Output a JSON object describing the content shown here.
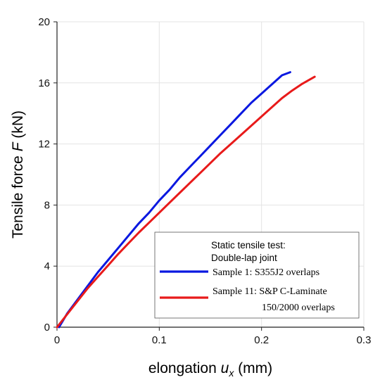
{
  "chart_data": {
    "type": "line",
    "xlabel_prefix": "elongation ",
    "xlabel_var": "u",
    "xlabel_sub": "x",
    "xlabel_suffix": " (mm)",
    "ylabel_prefix": "Tensile force ",
    "ylabel_var": "F",
    "ylabel_suffix": " (kN)",
    "xlim": [
      0,
      0.3
    ],
    "ylim": [
      0,
      20
    ],
    "x_ticks": [
      0,
      0.1,
      0.2,
      0.3
    ],
    "x_tick_labels": [
      "0",
      "0.1",
      "0.2",
      "0.3"
    ],
    "y_ticks": [
      0,
      4,
      8,
      12,
      16,
      20
    ],
    "y_tick_labels": [
      "0",
      "4",
      "8",
      "12",
      "16",
      "20"
    ],
    "grid": true,
    "legend": {
      "placement": "bottom-right",
      "title_lines": [
        "Static tensile test:",
        "Double-lap joint"
      ]
    },
    "series": [
      {
        "name": "Sample 1: S355J2 overlaps",
        "color": "#0a18e0",
        "x": [
          0.002,
          0.01,
          0.02,
          0.03,
          0.04,
          0.05,
          0.06,
          0.07,
          0.08,
          0.09,
          0.1,
          0.11,
          0.12,
          0.13,
          0.14,
          0.15,
          0.16,
          0.17,
          0.18,
          0.19,
          0.2,
          0.21,
          0.22,
          0.228
        ],
        "y": [
          0.0,
          0.9,
          1.8,
          2.7,
          3.6,
          4.4,
          5.2,
          6.0,
          6.8,
          7.5,
          8.3,
          9.0,
          9.8,
          10.5,
          11.2,
          11.9,
          12.6,
          13.3,
          14.0,
          14.7,
          15.3,
          15.9,
          16.5,
          16.7
        ]
      },
      {
        "name_line1": "Sample 11: S&P C-Laminate",
        "name_line2": "150/2000 overlaps",
        "color": "#e81a1a",
        "x": [
          0.0,
          0.01,
          0.02,
          0.03,
          0.04,
          0.05,
          0.06,
          0.07,
          0.08,
          0.09,
          0.1,
          0.11,
          0.12,
          0.13,
          0.14,
          0.15,
          0.16,
          0.17,
          0.18,
          0.19,
          0.2,
          0.21,
          0.22,
          0.23,
          0.24,
          0.252
        ],
        "y": [
          0.0,
          0.85,
          1.7,
          2.55,
          3.3,
          4.05,
          4.8,
          5.5,
          6.2,
          6.85,
          7.5,
          8.15,
          8.8,
          9.45,
          10.1,
          10.75,
          11.4,
          12.0,
          12.6,
          13.2,
          13.8,
          14.4,
          15.0,
          15.5,
          15.95,
          16.4
        ]
      }
    ]
  }
}
